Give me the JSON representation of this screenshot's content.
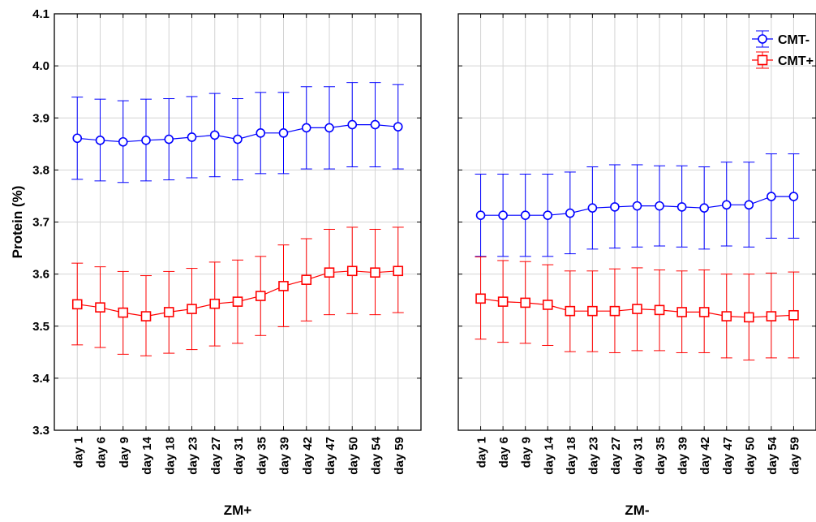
{
  "chart_data": [
    {
      "type": "line",
      "panel": "ZM+",
      "xlabel": "ZM+",
      "ylabel": "Protein (%)",
      "ylim": [
        3.3,
        4.1
      ],
      "yticks": [
        3.3,
        3.4,
        3.5,
        3.6,
        3.7,
        3.8,
        3.9,
        4.0,
        4.1
      ],
      "categories": [
        "day 1",
        "day 6",
        "day 9",
        "day 14",
        "day 18",
        "day 23",
        "day 27",
        "day 31",
        "day 35",
        "day 39",
        "day 42",
        "day 47",
        "day 50",
        "day 54",
        "day 59"
      ],
      "grid": true,
      "series": [
        {
          "name": "CMT-",
          "color": "#0000ff",
          "marker": "circle",
          "values": [
            3.861,
            3.857,
            3.854,
            3.857,
            3.859,
            3.863,
            3.867,
            3.859,
            3.871,
            3.871,
            3.881,
            3.881,
            3.887,
            3.887,
            3.883
          ],
          "lower": [
            3.782,
            3.779,
            3.776,
            3.779,
            3.781,
            3.785,
            3.787,
            3.781,
            3.793,
            3.793,
            3.802,
            3.802,
            3.806,
            3.806,
            3.802
          ],
          "upper": [
            3.94,
            3.936,
            3.933,
            3.936,
            3.937,
            3.941,
            3.947,
            3.937,
            3.949,
            3.949,
            3.96,
            3.96,
            3.968,
            3.968,
            3.964
          ]
        },
        {
          "name": "CMT+",
          "color": "#ff0000",
          "marker": "square",
          "values": [
            3.542,
            3.536,
            3.526,
            3.519,
            3.527,
            3.533,
            3.543,
            3.547,
            3.558,
            3.577,
            3.589,
            3.603,
            3.606,
            3.603,
            3.606
          ],
          "lower": [
            3.464,
            3.459,
            3.446,
            3.443,
            3.448,
            3.455,
            3.462,
            3.467,
            3.482,
            3.499,
            3.51,
            3.522,
            3.524,
            3.522,
            3.526
          ],
          "upper": [
            3.621,
            3.614,
            3.605,
            3.597,
            3.605,
            3.611,
            3.623,
            3.627,
            3.634,
            3.656,
            3.668,
            3.686,
            3.69,
            3.686,
            3.69
          ]
        }
      ]
    },
    {
      "type": "line",
      "panel": "ZM-",
      "xlabel": "ZM-",
      "ylim": [
        3.3,
        4.1
      ],
      "categories": [
        "day 1",
        "day 6",
        "day 9",
        "day 14",
        "day 18",
        "day 23",
        "day 27",
        "day 31",
        "day 35",
        "day 39",
        "day 42",
        "day 47",
        "day 50",
        "day 54",
        "day 59"
      ],
      "grid": true,
      "legend": {
        "placement": "top-right",
        "entries": [
          "CMT-",
          "CMT+"
        ]
      },
      "series": [
        {
          "name": "CMT-",
          "color": "#0000ff",
          "marker": "circle",
          "values": [
            3.713,
            3.713,
            3.713,
            3.713,
            3.717,
            3.727,
            3.729,
            3.731,
            3.731,
            3.729,
            3.727,
            3.733,
            3.733,
            3.749,
            3.749
          ],
          "lower": [
            3.634,
            3.634,
            3.634,
            3.634,
            3.639,
            3.648,
            3.65,
            3.652,
            3.654,
            3.652,
            3.648,
            3.654,
            3.652,
            3.669,
            3.669
          ],
          "upper": [
            3.792,
            3.792,
            3.792,
            3.792,
            3.796,
            3.806,
            3.81,
            3.81,
            3.808,
            3.808,
            3.806,
            3.815,
            3.815,
            3.831,
            3.831
          ]
        },
        {
          "name": "CMT+",
          "color": "#ff0000",
          "marker": "square",
          "values": [
            3.553,
            3.547,
            3.545,
            3.541,
            3.529,
            3.529,
            3.529,
            3.533,
            3.531,
            3.527,
            3.527,
            3.519,
            3.517,
            3.519,
            3.521
          ],
          "lower": [
            3.475,
            3.469,
            3.467,
            3.463,
            3.451,
            3.451,
            3.449,
            3.453,
            3.453,
            3.449,
            3.449,
            3.439,
            3.435,
            3.439,
            3.439
          ],
          "upper": [
            3.633,
            3.626,
            3.624,
            3.618,
            3.606,
            3.606,
            3.61,
            3.612,
            3.608,
            3.606,
            3.608,
            3.6,
            3.6,
            3.602,
            3.604
          ]
        }
      ]
    }
  ]
}
